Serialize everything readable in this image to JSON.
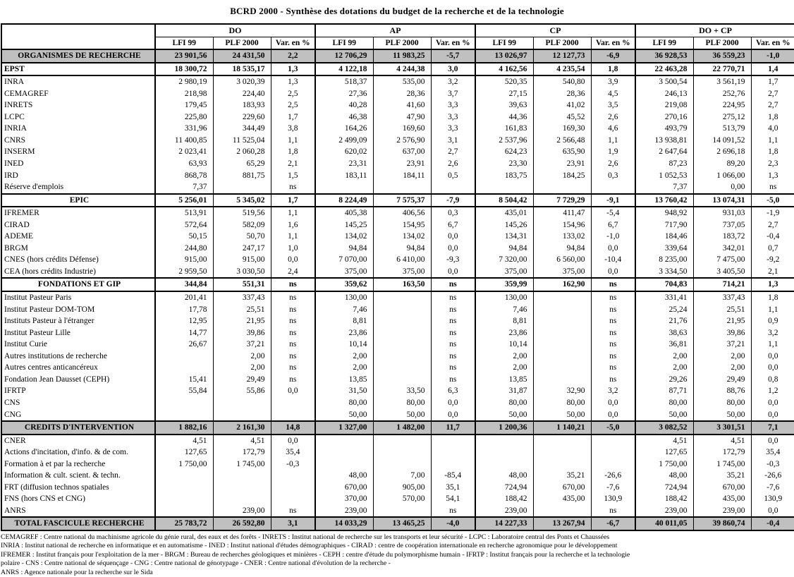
{
  "title": "BCRD 2000 - Synthèse des dotations du budget de la recherche et de la technologie",
  "colors": {
    "section_row_bg": "#c0c0c0"
  },
  "table": {
    "groups": [
      "DO",
      "AP",
      "CP",
      "DO + CP"
    ],
    "sub_headers": [
      "LFI 99",
      "PLF 2000",
      "Var. en %"
    ],
    "rows": [
      {
        "label": "ORGANISMES DE RECHERCHE",
        "style": "gray",
        "values": [
          "23 901,56",
          "24 431,50",
          "2,2",
          "12 706,29",
          "11 983,25",
          "-5,7",
          "13 026,97",
          "12 127,73",
          "-6,9",
          "36 928,53",
          "36 559,23",
          "-1,0"
        ]
      },
      {
        "label": "EPST",
        "style": "bold-left",
        "values": [
          "18 300,72",
          "18 535,17",
          "1,3",
          "4 122,18",
          "4 244,38",
          "3,0",
          "4 162,56",
          "4 235,54",
          "1,8",
          "22 463,28",
          "22 770,71",
          "1,4"
        ]
      },
      {
        "label": "INRA",
        "style": "normal",
        "values": [
          "2 980,19",
          "3 020,39",
          "1,3",
          "518,37",
          "535,00",
          "3,2",
          "520,35",
          "540,80",
          "3,9",
          "3 500,54",
          "3 561,19",
          "1,7"
        ]
      },
      {
        "label": "CEMAGREF",
        "style": "normal",
        "values": [
          "218,98",
          "224,40",
          "2,5",
          "27,36",
          "28,36",
          "3,7",
          "27,15",
          "28,36",
          "4,5",
          "246,13",
          "252,76",
          "2,7"
        ]
      },
      {
        "label": "INRETS",
        "style": "normal",
        "values": [
          "179,45",
          "183,93",
          "2,5",
          "40,28",
          "41,60",
          "3,3",
          "39,63",
          "41,02",
          "3,5",
          "219,08",
          "224,95",
          "2,7"
        ]
      },
      {
        "label": "LCPC",
        "style": "normal",
        "values": [
          "225,80",
          "229,60",
          "1,7",
          "46,38",
          "47,90",
          "3,3",
          "44,36",
          "45,52",
          "2,6",
          "270,16",
          "275,12",
          "1,8"
        ]
      },
      {
        "label": "INRIA",
        "style": "normal",
        "values": [
          "331,96",
          "344,49",
          "3,8",
          "164,26",
          "169,60",
          "3,3",
          "161,83",
          "169,30",
          "4,6",
          "493,79",
          "513,79",
          "4,0"
        ]
      },
      {
        "label": "CNRS",
        "style": "normal",
        "values": [
          "11 400,85",
          "11 525,04",
          "1,1",
          "2 499,09",
          "2 576,90",
          "3,1",
          "2 537,96",
          "2 566,48",
          "1,1",
          "13 938,81",
          "14 091,52",
          "1,1"
        ]
      },
      {
        "label": "INSERM",
        "style": "normal",
        "values": [
          "2 023,41",
          "2 060,28",
          "1,8",
          "620,02",
          "637,00",
          "2,7",
          "624,23",
          "635,90",
          "1,9",
          "2 647,64",
          "2 696,18",
          "1,8"
        ]
      },
      {
        "label": "INED",
        "style": "normal",
        "values": [
          "63,93",
          "65,29",
          "2,1",
          "23,31",
          "23,91",
          "2,6",
          "23,30",
          "23,91",
          "2,6",
          "87,23",
          "89,20",
          "2,3"
        ]
      },
      {
        "label": "IRD",
        "style": "normal",
        "values": [
          "868,78",
          "881,75",
          "1,5",
          "183,11",
          "184,11",
          "0,5",
          "183,75",
          "184,25",
          "0,3",
          "1 052,53",
          "1 066,00",
          "1,3"
        ]
      },
      {
        "label": "Réserve d'emplois",
        "style": "normal",
        "values": [
          "7,37",
          "",
          "ns",
          "",
          "",
          "",
          "",
          "",
          "",
          "7,37",
          "0,00",
          "ns"
        ]
      },
      {
        "label": "EPIC",
        "style": "bold",
        "values": [
          "5 256,01",
          "5 345,02",
          "1,7",
          "8 224,49",
          "7 575,37",
          "-7,9",
          "8 504,42",
          "7 729,29",
          "-9,1",
          "13 760,42",
          "13 074,31",
          "-5,0"
        ]
      },
      {
        "label": "IFREMER",
        "style": "normal",
        "values": [
          "513,91",
          "519,56",
          "1,1",
          "405,38",
          "406,56",
          "0,3",
          "435,01",
          "411,47",
          "-5,4",
          "948,92",
          "931,03",
          "-1,9"
        ]
      },
      {
        "label": "CIRAD",
        "style": "normal",
        "values": [
          "572,64",
          "582,09",
          "1,6",
          "145,25",
          "154,95",
          "6,7",
          "145,26",
          "154,96",
          "6,7",
          "717,90",
          "737,05",
          "2,7"
        ]
      },
      {
        "label": "ADEME",
        "style": "normal",
        "values": [
          "50,15",
          "50,70",
          "1,1",
          "134,02",
          "134,02",
          "0,0",
          "134,31",
          "133,02",
          "-1,0",
          "184,46",
          "183,72",
          "-0,4"
        ]
      },
      {
        "label": "BRGM",
        "style": "normal",
        "values": [
          "244,80",
          "247,17",
          "1,0",
          "94,84",
          "94,84",
          "0,0",
          "94,84",
          "94,84",
          "0,0",
          "339,64",
          "342,01",
          "0,7"
        ]
      },
      {
        "label": "CNES (hors crédits Défense)",
        "style": "normal",
        "values": [
          "915,00",
          "915,00",
          "0,0",
          "7 070,00",
          "6 410,00",
          "-9,3",
          "7 320,00",
          "6 560,00",
          "-10,4",
          "8 235,00",
          "7 475,00",
          "-9,2"
        ]
      },
      {
        "label": "CEA (hors crédits Industrie)",
        "style": "normal",
        "values": [
          "2 959,50",
          "3 030,50",
          "2,4",
          "375,00",
          "375,00",
          "0,0",
          "375,00",
          "375,00",
          "0,0",
          "3 334,50",
          "3 405,50",
          "2,1"
        ]
      },
      {
        "label": "FONDATIONS ET GIP",
        "style": "bold",
        "values": [
          "344,84",
          "551,31",
          "ns",
          "359,62",
          "163,50",
          "ns",
          "359,99",
          "162,90",
          "ns",
          "704,83",
          "714,21",
          "1,3"
        ]
      },
      {
        "label": "Institut Pasteur Paris",
        "style": "normal",
        "values": [
          "201,41",
          "337,43",
          "ns",
          "130,00",
          "",
          "ns",
          "130,00",
          "",
          "ns",
          "331,41",
          "337,43",
          "1,8"
        ]
      },
      {
        "label": "Institut Pasteur DOM-TOM",
        "style": "normal",
        "values": [
          "17,78",
          "25,51",
          "ns",
          "7,46",
          "",
          "ns",
          "7,46",
          "",
          "ns",
          "25,24",
          "25,51",
          "1,1"
        ]
      },
      {
        "label": "Instituts Pasteur à l'étranger",
        "style": "normal",
        "values": [
          "12,95",
          "21,95",
          "ns",
          "8,81",
          "",
          "ns",
          "8,81",
          "",
          "ns",
          "21,76",
          "21,95",
          "0,9"
        ]
      },
      {
        "label": "Institut Pasteur Lille",
        "style": "normal",
        "values": [
          "14,77",
          "39,86",
          "ns",
          "23,86",
          "",
          "ns",
          "23,86",
          "",
          "ns",
          "38,63",
          "39,86",
          "3,2"
        ]
      },
      {
        "label": "Institut Curie",
        "style": "normal",
        "values": [
          "26,67",
          "37,21",
          "ns",
          "10,14",
          "",
          "ns",
          "10,14",
          "",
          "ns",
          "36,81",
          "37,21",
          "1,1"
        ]
      },
      {
        "label": "Autres institutions de recherche",
        "style": "normal",
        "values": [
          "",
          "2,00",
          "ns",
          "2,00",
          "",
          "ns",
          "2,00",
          "",
          "ns",
          "2,00",
          "2,00",
          "0,0"
        ]
      },
      {
        "label": "Autres centres anticancéreux",
        "style": "normal",
        "values": [
          "",
          "2,00",
          "ns",
          "2,00",
          "",
          "ns",
          "2,00",
          "",
          "ns",
          "2,00",
          "2,00",
          "0,0"
        ]
      },
      {
        "label": "Fondation Jean Dausset (CEPH)",
        "style": "normal",
        "values": [
          "15,41",
          "29,49",
          "ns",
          "13,85",
          "",
          "ns",
          "13,85",
          "",
          "ns",
          "29,26",
          "29,49",
          "0,8"
        ]
      },
      {
        "label": "IFRTP",
        "style": "normal",
        "values": [
          "55,84",
          "55,86",
          "0,0",
          "31,50",
          "33,50",
          "6,3",
          "31,87",
          "32,90",
          "3,2",
          "87,71",
          "88,76",
          "1,2"
        ]
      },
      {
        "label": "CNS",
        "style": "normal",
        "values": [
          "",
          "",
          "",
          "80,00",
          "80,00",
          "0,0",
          "80,00",
          "80,00",
          "0,0",
          "80,00",
          "80,00",
          "0,0"
        ]
      },
      {
        "label": "CNG",
        "style": "normal",
        "values": [
          "",
          "",
          "",
          "50,00",
          "50,00",
          "0,0",
          "50,00",
          "50,00",
          "0,0",
          "50,00",
          "50,00",
          "0,0"
        ]
      },
      {
        "label": "CREDITS D'INTERVENTION",
        "style": "gray",
        "values": [
          "1 882,16",
          "2 161,30",
          "14,8",
          "1 327,00",
          "1 482,00",
          "11,7",
          "1 200,36",
          "1 140,21",
          "-5,0",
          "3 082,52",
          "3 301,51",
          "7,1"
        ]
      },
      {
        "label": "CNER",
        "style": "normal",
        "values": [
          "4,51",
          "4,51",
          "0,0",
          "",
          "",
          "",
          "",
          "",
          "",
          "4,51",
          "4,51",
          "0,0"
        ]
      },
      {
        "label": "Actions d'incitation, d'info. & de com.",
        "style": "normal",
        "values": [
          "127,65",
          "172,79",
          "35,4",
          "",
          "",
          "",
          "",
          "",
          "",
          "127,65",
          "172,79",
          "35,4"
        ]
      },
      {
        "label": "Formation à et par la recherche",
        "style": "normal",
        "values": [
          "1 750,00",
          "1 745,00",
          "-0,3",
          "",
          "",
          "",
          "",
          "",
          "",
          "1 750,00",
          "1 745,00",
          "-0,3"
        ]
      },
      {
        "label": "Information & cult. scient. & techn.",
        "style": "normal",
        "values": [
          "",
          "",
          "",
          "48,00",
          "7,00",
          "-85,4",
          "48,00",
          "35,21",
          "-26,6",
          "48,00",
          "35,21",
          "-26,6"
        ]
      },
      {
        "label": "FRT (diffusion technos spatiales",
        "style": "normal",
        "values": [
          "",
          "",
          "",
          "670,00",
          "905,00",
          "35,1",
          "724,94",
          "670,00",
          "-7,6",
          "724,94",
          "670,00",
          "-7,6"
        ]
      },
      {
        "label": "FNS (hors CNS et CNG)",
        "style": "normal",
        "values": [
          "",
          "",
          "",
          "370,00",
          "570,00",
          "54,1",
          "188,42",
          "435,00",
          "130,9",
          "188,42",
          "435,00",
          "130,9"
        ]
      },
      {
        "label": "ANRS",
        "style": "normal",
        "values": [
          "",
          "239,00",
          "ns",
          "239,00",
          "",
          "ns",
          "239,00",
          "",
          "ns",
          "239,00",
          "239,00",
          "0,0"
        ]
      },
      {
        "label": "TOTAL FASCICULE RECHERCHE",
        "style": "gray",
        "values": [
          "25 783,72",
          "26 592,80",
          "3,1",
          "14 033,29",
          "13 465,25",
          "-4,0",
          "14 227,33",
          "13 267,94",
          "-6,7",
          "40 011,05",
          "39 860,74",
          "-0,4"
        ]
      }
    ]
  },
  "footnotes": [
    "CEMAGREF : Centre national du machinisme agricole du génie rural, des eaux et des forêts - INRETS : Institut national de recherche sur les transports et leur sécurité - LCPC : Laboratoire central des Ponts et Chaussées",
    "INRIA : Institut national de recherche en informatique et en automatisme - INED : Institut national d'études démographiques - CIRAD : centre de coopération internationale en recherche agronomique pour le développement",
    "IFREMER : Institut français pour l'exploitation de la mer - BRGM : Bureau de recherches géologiques et minières - CEPH : centre d'étude du polymorphisme humain - IFRTP : Institut français pour la recherche et la technologie",
    "polaire - CNS : Centre national de séquençage - CNG : Centre national de génotypage - CNER : Centre national d'évolution de la recherche -",
    "ANRS : Agence nationale pour la recherche sur le Sida"
  ]
}
